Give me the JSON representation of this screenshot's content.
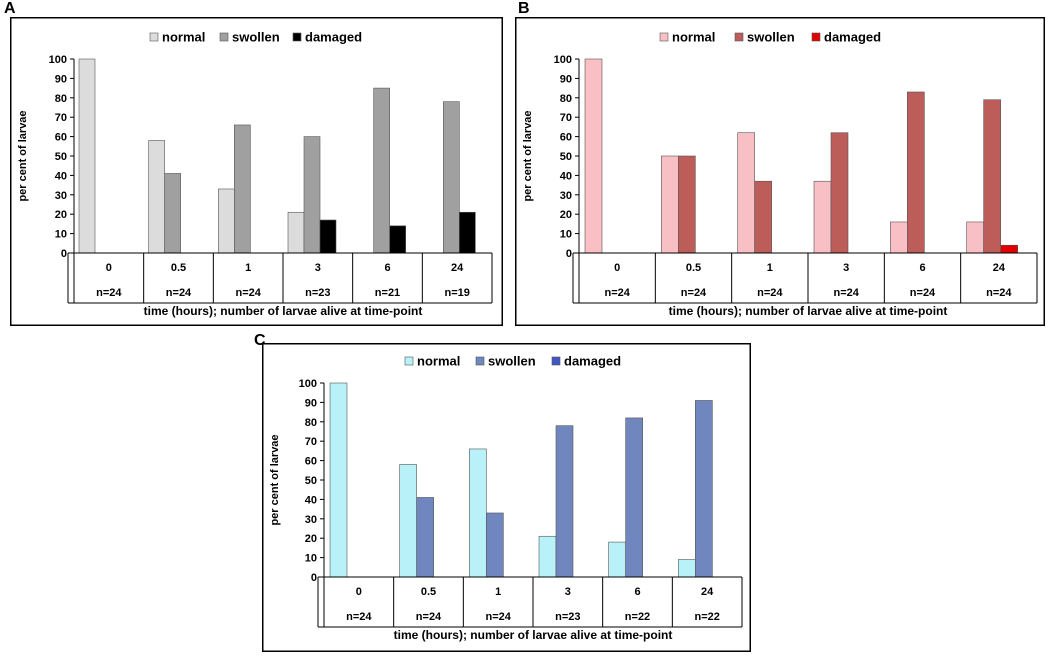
{
  "chart_data": [
    {
      "panel": "A",
      "type": "bar",
      "categories": [
        "0",
        "0.5",
        "1",
        "3",
        "6",
        "24"
      ],
      "n_labels": [
        "n=24",
        "n=24",
        "n=24",
        "n=23",
        "n=21",
        "n=19"
      ],
      "series": [
        {
          "name": "normal",
          "values": [
            100,
            58,
            33,
            21,
            0,
            0
          ],
          "color": "#dcdcdc"
        },
        {
          "name": "swollen",
          "values": [
            0,
            41,
            66,
            60,
            85,
            78
          ],
          "color": "#a0a0a0"
        },
        {
          "name": "damaged",
          "values": [
            0,
            0,
            0,
            17,
            14,
            21
          ],
          "color": "#000000"
        }
      ],
      "ylabel": "per cent of larvae",
      "xlabel": "time (hours); number of larvae alive at time-point",
      "ylim": [
        0,
        100
      ],
      "yticks": [
        "0",
        "10",
        "20",
        "30",
        "40",
        "50",
        "60",
        "70",
        "80",
        "90",
        "100"
      ],
      "legend_position": "top-center"
    },
    {
      "panel": "B",
      "type": "bar",
      "categories": [
        "0",
        "0.5",
        "1",
        "3",
        "6",
        "24"
      ],
      "n_labels": [
        "n=24",
        "n=24",
        "n=24",
        "n=24",
        "n=24",
        "n=24"
      ],
      "series": [
        {
          "name": "normal",
          "values": [
            100,
            50,
            62,
            37,
            16,
            16
          ],
          "color": "#f8c0c4"
        },
        {
          "name": "swollen",
          "values": [
            0,
            50,
            37,
            62,
            83,
            79
          ],
          "color": "#bc5d5a"
        },
        {
          "name": "damaged",
          "values": [
            0,
            0,
            0,
            0,
            0,
            4
          ],
          "color": "#e00000"
        }
      ],
      "ylabel": "per cent of larvae",
      "xlabel": "time (hours); number of larvae alive at time-point",
      "ylim": [
        0,
        100
      ],
      "yticks": [
        "0",
        "10",
        "20",
        "30",
        "40",
        "50",
        "60",
        "70",
        "80",
        "90",
        "100"
      ],
      "legend_position": "top-center"
    },
    {
      "panel": "C",
      "type": "bar",
      "categories": [
        "0",
        "0.5",
        "1",
        "3",
        "6",
        "24"
      ],
      "n_labels": [
        "n=24",
        "n=24",
        "n=24",
        "n=23",
        "n=22",
        "n=22"
      ],
      "series": [
        {
          "name": "normal",
          "values": [
            100,
            58,
            66,
            21,
            18,
            9
          ],
          "color": "#b8f2f8"
        },
        {
          "name": "swollen",
          "values": [
            0,
            41,
            33,
            78,
            82,
            91
          ],
          "color": "#6f86be"
        },
        {
          "name": "damaged",
          "values": [
            0,
            0,
            0,
            0,
            0,
            0
          ],
          "color": "#3f57c4"
        }
      ],
      "ylabel": "per cent of larvae",
      "xlabel": "time (hours); number of larvae alive at time-point",
      "ylim": [
        0,
        100
      ],
      "yticks": [
        "0",
        "10",
        "20",
        "30",
        "40",
        "50",
        "60",
        "70",
        "80",
        "90",
        "100"
      ],
      "legend_position": "top-center"
    }
  ]
}
